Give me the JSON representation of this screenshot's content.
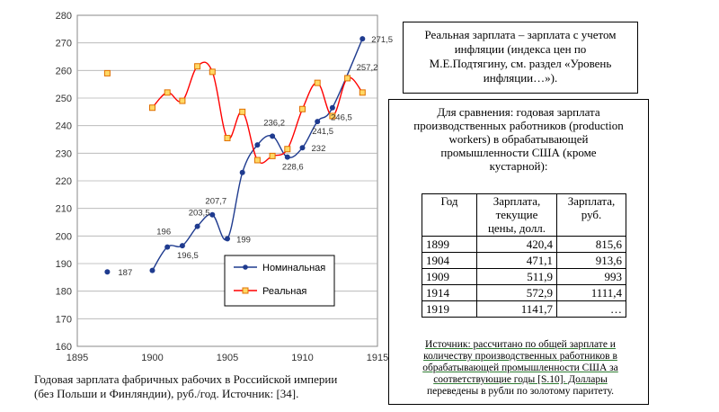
{
  "chart_data": {
    "type": "line",
    "xlim": [
      1895,
      1915
    ],
    "ylim": [
      160,
      280
    ],
    "xticks": [
      "1895",
      "1900",
      "1905",
      "1910",
      "1915"
    ],
    "yticks": [
      "160",
      "170",
      "180",
      "190",
      "200",
      "210",
      "220",
      "230",
      "240",
      "250",
      "260",
      "270",
      "280"
    ],
    "grid": "horizontal",
    "legend_placement": "lower-right",
    "series": [
      {
        "name": "Номинальная",
        "color": "#1f3b8f",
        "marker": "circle",
        "points": [
          {
            "x": 1897,
            "y": 187,
            "label": "187"
          },
          {
            "x": 1900,
            "y": 187.5,
            "label": ""
          },
          {
            "x": 1901,
            "y": 196,
            "label": "196"
          },
          {
            "x": 1902,
            "y": 196.5,
            "label": "196,5"
          },
          {
            "x": 1903,
            "y": 203.5,
            "label": "203,5"
          },
          {
            "x": 1904,
            "y": 207.7,
            "label": "207,7"
          },
          {
            "x": 1905,
            "y": 199,
            "label": "199"
          },
          {
            "x": 1906,
            "y": 223,
            "label": ""
          },
          {
            "x": 1907,
            "y": 233,
            "label": ""
          },
          {
            "x": 1908,
            "y": 236.2,
            "label": "236,2"
          },
          {
            "x": 1909,
            "y": 228.6,
            "label": "228,6"
          },
          {
            "x": 1910,
            "y": 232,
            "label": "232"
          },
          {
            "x": 1911,
            "y": 241.5,
            "label": "241,5"
          },
          {
            "x": 1912,
            "y": 246.5,
            "label": "246,5"
          },
          {
            "x": 1914,
            "y": 271.5,
            "label": "271,5"
          }
        ]
      },
      {
        "name": "Реальная",
        "color": "#ff0000",
        "marker_color": "#f0a020",
        "marker": "square",
        "points": [
          {
            "x": 1897,
            "y": 259,
            "label": ""
          },
          {
            "x": 1900,
            "y": 246.5,
            "label": ""
          },
          {
            "x": 1901,
            "y": 252,
            "label": ""
          },
          {
            "x": 1902,
            "y": 249,
            "label": ""
          },
          {
            "x": 1903,
            "y": 261.5,
            "label": ""
          },
          {
            "x": 1904,
            "y": 259.5,
            "label": ""
          },
          {
            "x": 1905,
            "y": 235.5,
            "label": ""
          },
          {
            "x": 1906,
            "y": 245,
            "label": ""
          },
          {
            "x": 1907,
            "y": 227.5,
            "label": ""
          },
          {
            "x": 1908,
            "y": 229,
            "label": ""
          },
          {
            "x": 1909,
            "y": 231.5,
            "label": ""
          },
          {
            "x": 1910,
            "y": 246,
            "label": ""
          },
          {
            "x": 1911,
            "y": 255.5,
            "label": ""
          },
          {
            "x": 1912,
            "y": 243.5,
            "label": ""
          },
          {
            "x": 1913,
            "y": 257.2,
            "label": "257,2"
          },
          {
            "x": 1914,
            "y": 252,
            "label": ""
          }
        ]
      }
    ]
  },
  "caption": {
    "line1": "Годовая зарплата фабричных рабочих в Российской империи",
    "line2": "(без Польши и Финляндии), руб./год. Источник:  [34]."
  },
  "note_box": {
    "lines": [
      "Реальная зарплата – зарплата с учетом",
      "инфляции (индекса цен по",
      "М.Е.Подтягину, см. раздел «Уровень",
      "инфляции…»)."
    ]
  },
  "comparison_box": {
    "heading_lines": [
      "Для сравнения: годовая зарплата",
      "производственных работников (production",
      "workers) в обрабатывающей",
      "промышленности США (кроме",
      "кустарной):"
    ],
    "table": {
      "headers": [
        "Год",
        "Зарплата, текущие цены, долл.",
        "Зарплата, руб."
      ],
      "rows": [
        [
          "1899",
          "420,4",
          "815,6"
        ],
        [
          "1904",
          "471,1",
          "913,6"
        ],
        [
          "1909",
          "511,9",
          "993"
        ],
        [
          "1914",
          "572,9",
          "1111,4"
        ],
        [
          "1919",
          "1141,7",
          "…"
        ]
      ]
    },
    "source_lines": [
      "Источник: рассчитано по общей зарплате и",
      "количеству производственных работников в",
      "обрабатывающей промышленности США за",
      "соответствующие годы [S.10]. Доллары",
      "переведены в рубли по золотому паритету."
    ]
  }
}
